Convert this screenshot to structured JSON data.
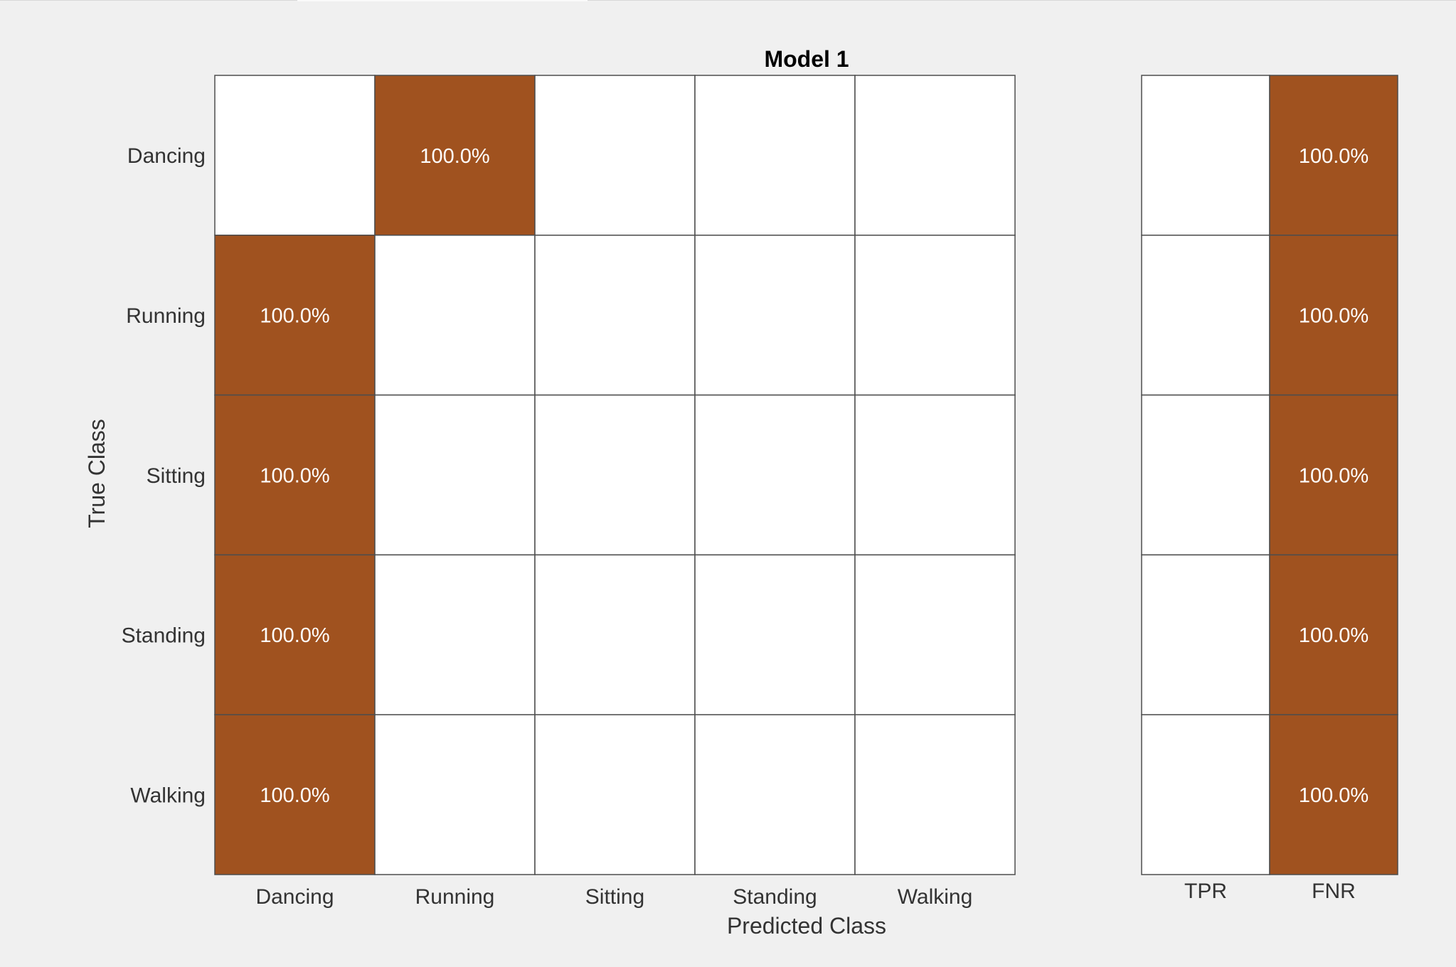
{
  "chart_data": {
    "type": "heatmap",
    "title": "Model 1",
    "xlabel": "Predicted Class",
    "ylabel": "True Class",
    "classes": [
      "Dancing",
      "Running",
      "Sitting",
      "Standing",
      "Walking"
    ],
    "cells": [
      [
        "",
        "100.0%",
        "",
        "",
        ""
      ],
      [
        "100.0%",
        "",
        "",
        "",
        ""
      ],
      [
        "100.0%",
        "",
        "",
        "",
        ""
      ],
      [
        "100.0%",
        "",
        "",
        "",
        ""
      ],
      [
        "100.0%",
        "",
        "",
        "",
        ""
      ]
    ],
    "summary": {
      "columns": [
        "TPR",
        "FNR"
      ],
      "cells": [
        [
          "",
          "100.0%"
        ],
        [
          "",
          "100.0%"
        ],
        [
          "",
          "100.0%"
        ],
        [
          "",
          "100.0%"
        ],
        [
          "",
          "100.0%"
        ]
      ]
    }
  },
  "colors": {
    "background": "#f0f0f0",
    "filled_cell": "#a0521f",
    "empty_cell": "#ffffff",
    "grid_line": "#4d4d4d",
    "cell_text": "#ffffff",
    "label_text": "#333333",
    "title_text": "#000000"
  }
}
